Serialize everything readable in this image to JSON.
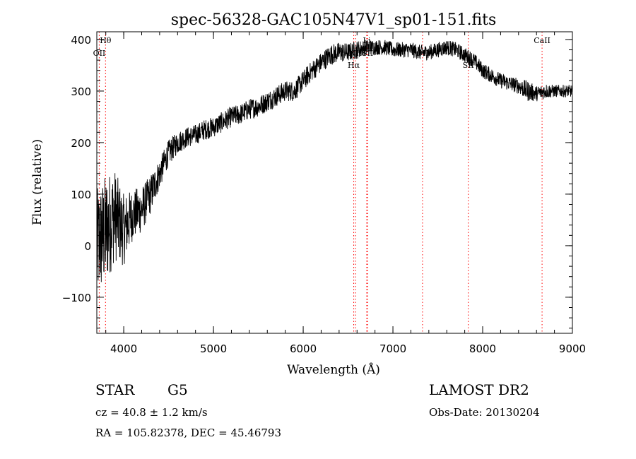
{
  "chart_data": {
    "type": "line",
    "title": "spec-56328-GAC105N47V1_sp01-151.fits",
    "xlabel": "Wavelength (Å)",
    "ylabel": "Flux (relative)",
    "xlim": [
      3700,
      9000
    ],
    "ylim": [
      -170,
      415
    ],
    "xticks": [
      4000,
      5000,
      6000,
      7000,
      8000,
      9000
    ],
    "yticks": [
      -100,
      0,
      100,
      200,
      300,
      400
    ],
    "grid": false,
    "line_color": "#000000",
    "marker_color": "#ff0000",
    "continuum_x": [
      3700,
      3800,
      3900,
      4000,
      4100,
      4200,
      4300,
      4400,
      4500,
      4600,
      4700,
      4800,
      4900,
      5000,
      5100,
      5200,
      5300,
      5400,
      5500,
      5600,
      5700,
      5800,
      5900,
      6000,
      6100,
      6200,
      6300,
      6400,
      6500,
      6600,
      6700,
      6800,
      6900,
      7000,
      7100,
      7200,
      7300,
      7400,
      7500,
      7600,
      7700,
      7800,
      7900,
      8000,
      8100,
      8200,
      8300,
      8400,
      8500,
      8600,
      8700,
      8800,
      8900,
      9000
    ],
    "continuum_y": [
      0,
      30,
      60,
      30,
      60,
      70,
      100,
      140,
      180,
      200,
      210,
      215,
      225,
      230,
      240,
      250,
      255,
      265,
      270,
      280,
      290,
      300,
      300,
      320,
      340,
      355,
      370,
      375,
      375,
      380,
      385,
      385,
      385,
      380,
      380,
      380,
      375,
      375,
      380,
      385,
      380,
      370,
      360,
      340,
      330,
      320,
      315,
      310,
      300,
      295,
      300,
      300,
      300,
      300
    ],
    "noise_amplitude": [
      110,
      110,
      90,
      70,
      50,
      45,
      38,
      30,
      25,
      22,
      20,
      20,
      20,
      20,
      20,
      20,
      20,
      20,
      20,
      20,
      20,
      20,
      20,
      20,
      20,
      20,
      20,
      20,
      18,
      18,
      15,
      15,
      15,
      15,
      15,
      15,
      15,
      15,
      15,
      15,
      15,
      15,
      15,
      15,
      15,
      15,
      15,
      15,
      20,
      15,
      15,
      12,
      12,
      12
    ],
    "lines": [
      {
        "label": "Hθ",
        "x": 3797,
        "row": "top"
      },
      {
        "label": "OII",
        "x": 3727,
        "row": "mid"
      },
      {
        "label": "NII",
        "x": 6583,
        "row": "mid"
      },
      {
        "label": "Hα",
        "x": 6563,
        "row": "low"
      },
      {
        "label": "Li",
        "x": 6708,
        "row": "top"
      },
      {
        "label": "SII",
        "x": 6717,
        "row": "mid"
      },
      {
        "label": "OII",
        "x": 7330,
        "row": "mid"
      },
      {
        "label": "SII",
        "x": 7840,
        "row": "low"
      },
      {
        "label": "CaII",
        "x": 8662,
        "row": "top"
      }
    ]
  },
  "info": {
    "class": "STAR",
    "subclass": "G5",
    "survey": "LAMOST DR2",
    "cz": "cz = 40.8 ± 1.2 km/s",
    "obs_date": "Obs-Date: 20130204",
    "radec": "RA = 105.82378, DEC =  45.46793"
  }
}
